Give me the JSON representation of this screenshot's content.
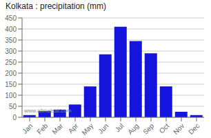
{
  "chart_data": {
    "type": "bar",
    "title": "Kolkata : precipitation (mm)",
    "categories": [
      "Jan",
      "Feb",
      "Mar",
      "Apr",
      "May",
      "Jun",
      "Jul",
      "Aug",
      "Sep",
      "Oct",
      "Nov",
      "Dec"
    ],
    "values": [
      10,
      28,
      35,
      58,
      140,
      285,
      410,
      345,
      290,
      140,
      25,
      10
    ],
    "color": "#1414dd",
    "ylim": [
      0,
      450
    ],
    "yticks": [
      0,
      50,
      100,
      150,
      200,
      250,
      300,
      350,
      400,
      450
    ],
    "grid": true,
    "annotations": [
      "www.allmetsat.com"
    ]
  }
}
